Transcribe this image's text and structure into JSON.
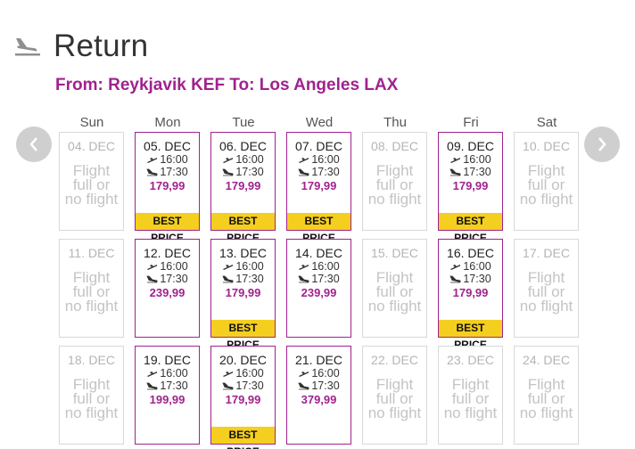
{
  "header": {
    "title": "Return",
    "icon": "plane-landing-icon"
  },
  "route": "From: Reykjavik KEF To: Los Angeles LAX",
  "weekdays": [
    "Sun",
    "Mon",
    "Tue",
    "Wed",
    "Thu",
    "Fri",
    "Sat"
  ],
  "no_flight_text": [
    "Flight",
    "full or",
    "no flight"
  ],
  "best_price_label": "BEST PRICE",
  "colors": {
    "accent": "#a0228e",
    "badge": "#f5cf1f",
    "unavailable": "#c4c4c4"
  },
  "weeks": [
    [
      {
        "date": "04. DEC",
        "available": false
      },
      {
        "date": "05. DEC",
        "available": true,
        "depart": "16:00",
        "arrive": "17:30",
        "price": "179,99",
        "best": true
      },
      {
        "date": "06. DEC",
        "available": true,
        "depart": "16:00",
        "arrive": "17:30",
        "price": "179,99",
        "best": true
      },
      {
        "date": "07. DEC",
        "available": true,
        "depart": "16:00",
        "arrive": "17:30",
        "price": "179,99",
        "best": true
      },
      {
        "date": "08. DEC",
        "available": false
      },
      {
        "date": "09. DEC",
        "available": true,
        "depart": "16:00",
        "arrive": "17:30",
        "price": "179,99",
        "best": true
      },
      {
        "date": "10. DEC",
        "available": false
      }
    ],
    [
      {
        "date": "11. DEC",
        "available": false
      },
      {
        "date": "12. DEC",
        "available": true,
        "depart": "16:00",
        "arrive": "17:30",
        "price": "239,99",
        "best": false
      },
      {
        "date": "13. DEC",
        "available": true,
        "depart": "16:00",
        "arrive": "17:30",
        "price": "179,99",
        "best": true
      },
      {
        "date": "14. DEC",
        "available": true,
        "depart": "16:00",
        "arrive": "17:30",
        "price": "239,99",
        "best": false
      },
      {
        "date": "15. DEC",
        "available": false
      },
      {
        "date": "16. DEC",
        "available": true,
        "depart": "16:00",
        "arrive": "17:30",
        "price": "179,99",
        "best": true
      },
      {
        "date": "17. DEC",
        "available": false
      }
    ],
    [
      {
        "date": "18. DEC",
        "available": false
      },
      {
        "date": "19. DEC",
        "available": true,
        "depart": "16:00",
        "arrive": "17:30",
        "price": "199,99",
        "best": false
      },
      {
        "date": "20. DEC",
        "available": true,
        "depart": "16:00",
        "arrive": "17:30",
        "price": "179,99",
        "best": true
      },
      {
        "date": "21. DEC",
        "available": true,
        "depart": "16:00",
        "arrive": "17:30",
        "price": "379,99",
        "best": false
      },
      {
        "date": "22. DEC",
        "available": false
      },
      {
        "date": "23. DEC",
        "available": false
      },
      {
        "date": "24. DEC",
        "available": false
      }
    ]
  ]
}
